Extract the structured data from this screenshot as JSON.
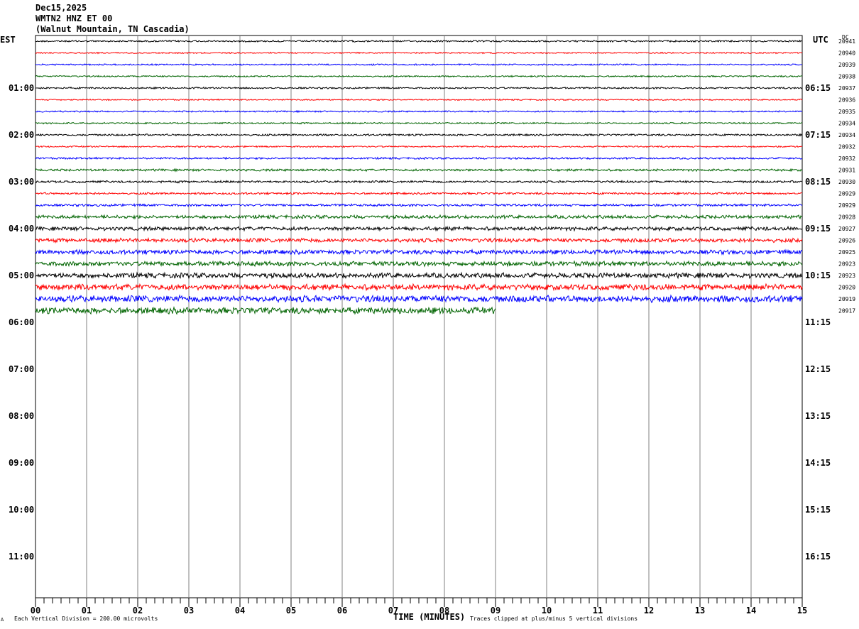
{
  "header": {
    "date": "Dec15,2025",
    "station": "WMTN2 HNZ ET 00",
    "location": "(Walnut Mountain, TN Cascadia)"
  },
  "left_axis_label": "EST",
  "right_axis_label": "UTC",
  "dc_label": "DC",
  "x_axis_title": "TIME (MINUTES)",
  "footer": {
    "scale_note": "Each Vertical Division =  200.00 microvolts",
    "clip_note": "Traces clipped at plus/minus 5 vertical divisions",
    "corner_mark": "A"
  },
  "colors": {
    "trace_cycle": [
      "#000000",
      "#ff0000",
      "#0000ff",
      "#006400"
    ],
    "grid": "#808080"
  },
  "chart_data": {
    "type": "line",
    "description_type": "helicorder",
    "x": [
      "00",
      "01",
      "02",
      "03",
      "04",
      "05",
      "06",
      "07",
      "08",
      "09",
      "10",
      "11",
      "12",
      "13",
      "14",
      "15"
    ],
    "xlim": [
      0,
      15
    ],
    "xlabel": "TIME (MINUTES)",
    "left_hour_labels": [
      "01:00",
      "02:00",
      "03:00",
      "04:00",
      "05:00",
      "06:00",
      "07:00",
      "08:00",
      "09:00",
      "10:00",
      "11:00"
    ],
    "right_hour_labels": [
      "06:15",
      "07:15",
      "08:15",
      "09:15",
      "10:15",
      "11:15",
      "12:15",
      "13:15",
      "14:15",
      "15:15",
      "16:15"
    ],
    "rows_per_hour": 4,
    "dc_values": [
      "20941",
      "20940",
      "20939",
      "20938",
      "20937",
      "20936",
      "20935",
      "20934",
      "20934",
      "20932",
      "20932",
      "20931",
      "20930",
      "20929",
      "20929",
      "20928",
      "20927",
      "20926",
      "20925",
      "20923",
      "20923",
      "20920",
      "20919",
      "20917"
    ],
    "trace_noise_level": [
      1.0,
      0.8,
      0.9,
      0.9,
      1.0,
      0.8,
      0.9,
      0.9,
      1.1,
      0.9,
      1.1,
      1.3,
      1.3,
      1.2,
      1.4,
      2.0,
      2.2,
      2.4,
      2.6,
      2.8,
      3.0,
      3.5,
      4.0,
      3.8
    ],
    "last_trace_end_minute": 9,
    "scale_microvolts_per_division": 200
  }
}
